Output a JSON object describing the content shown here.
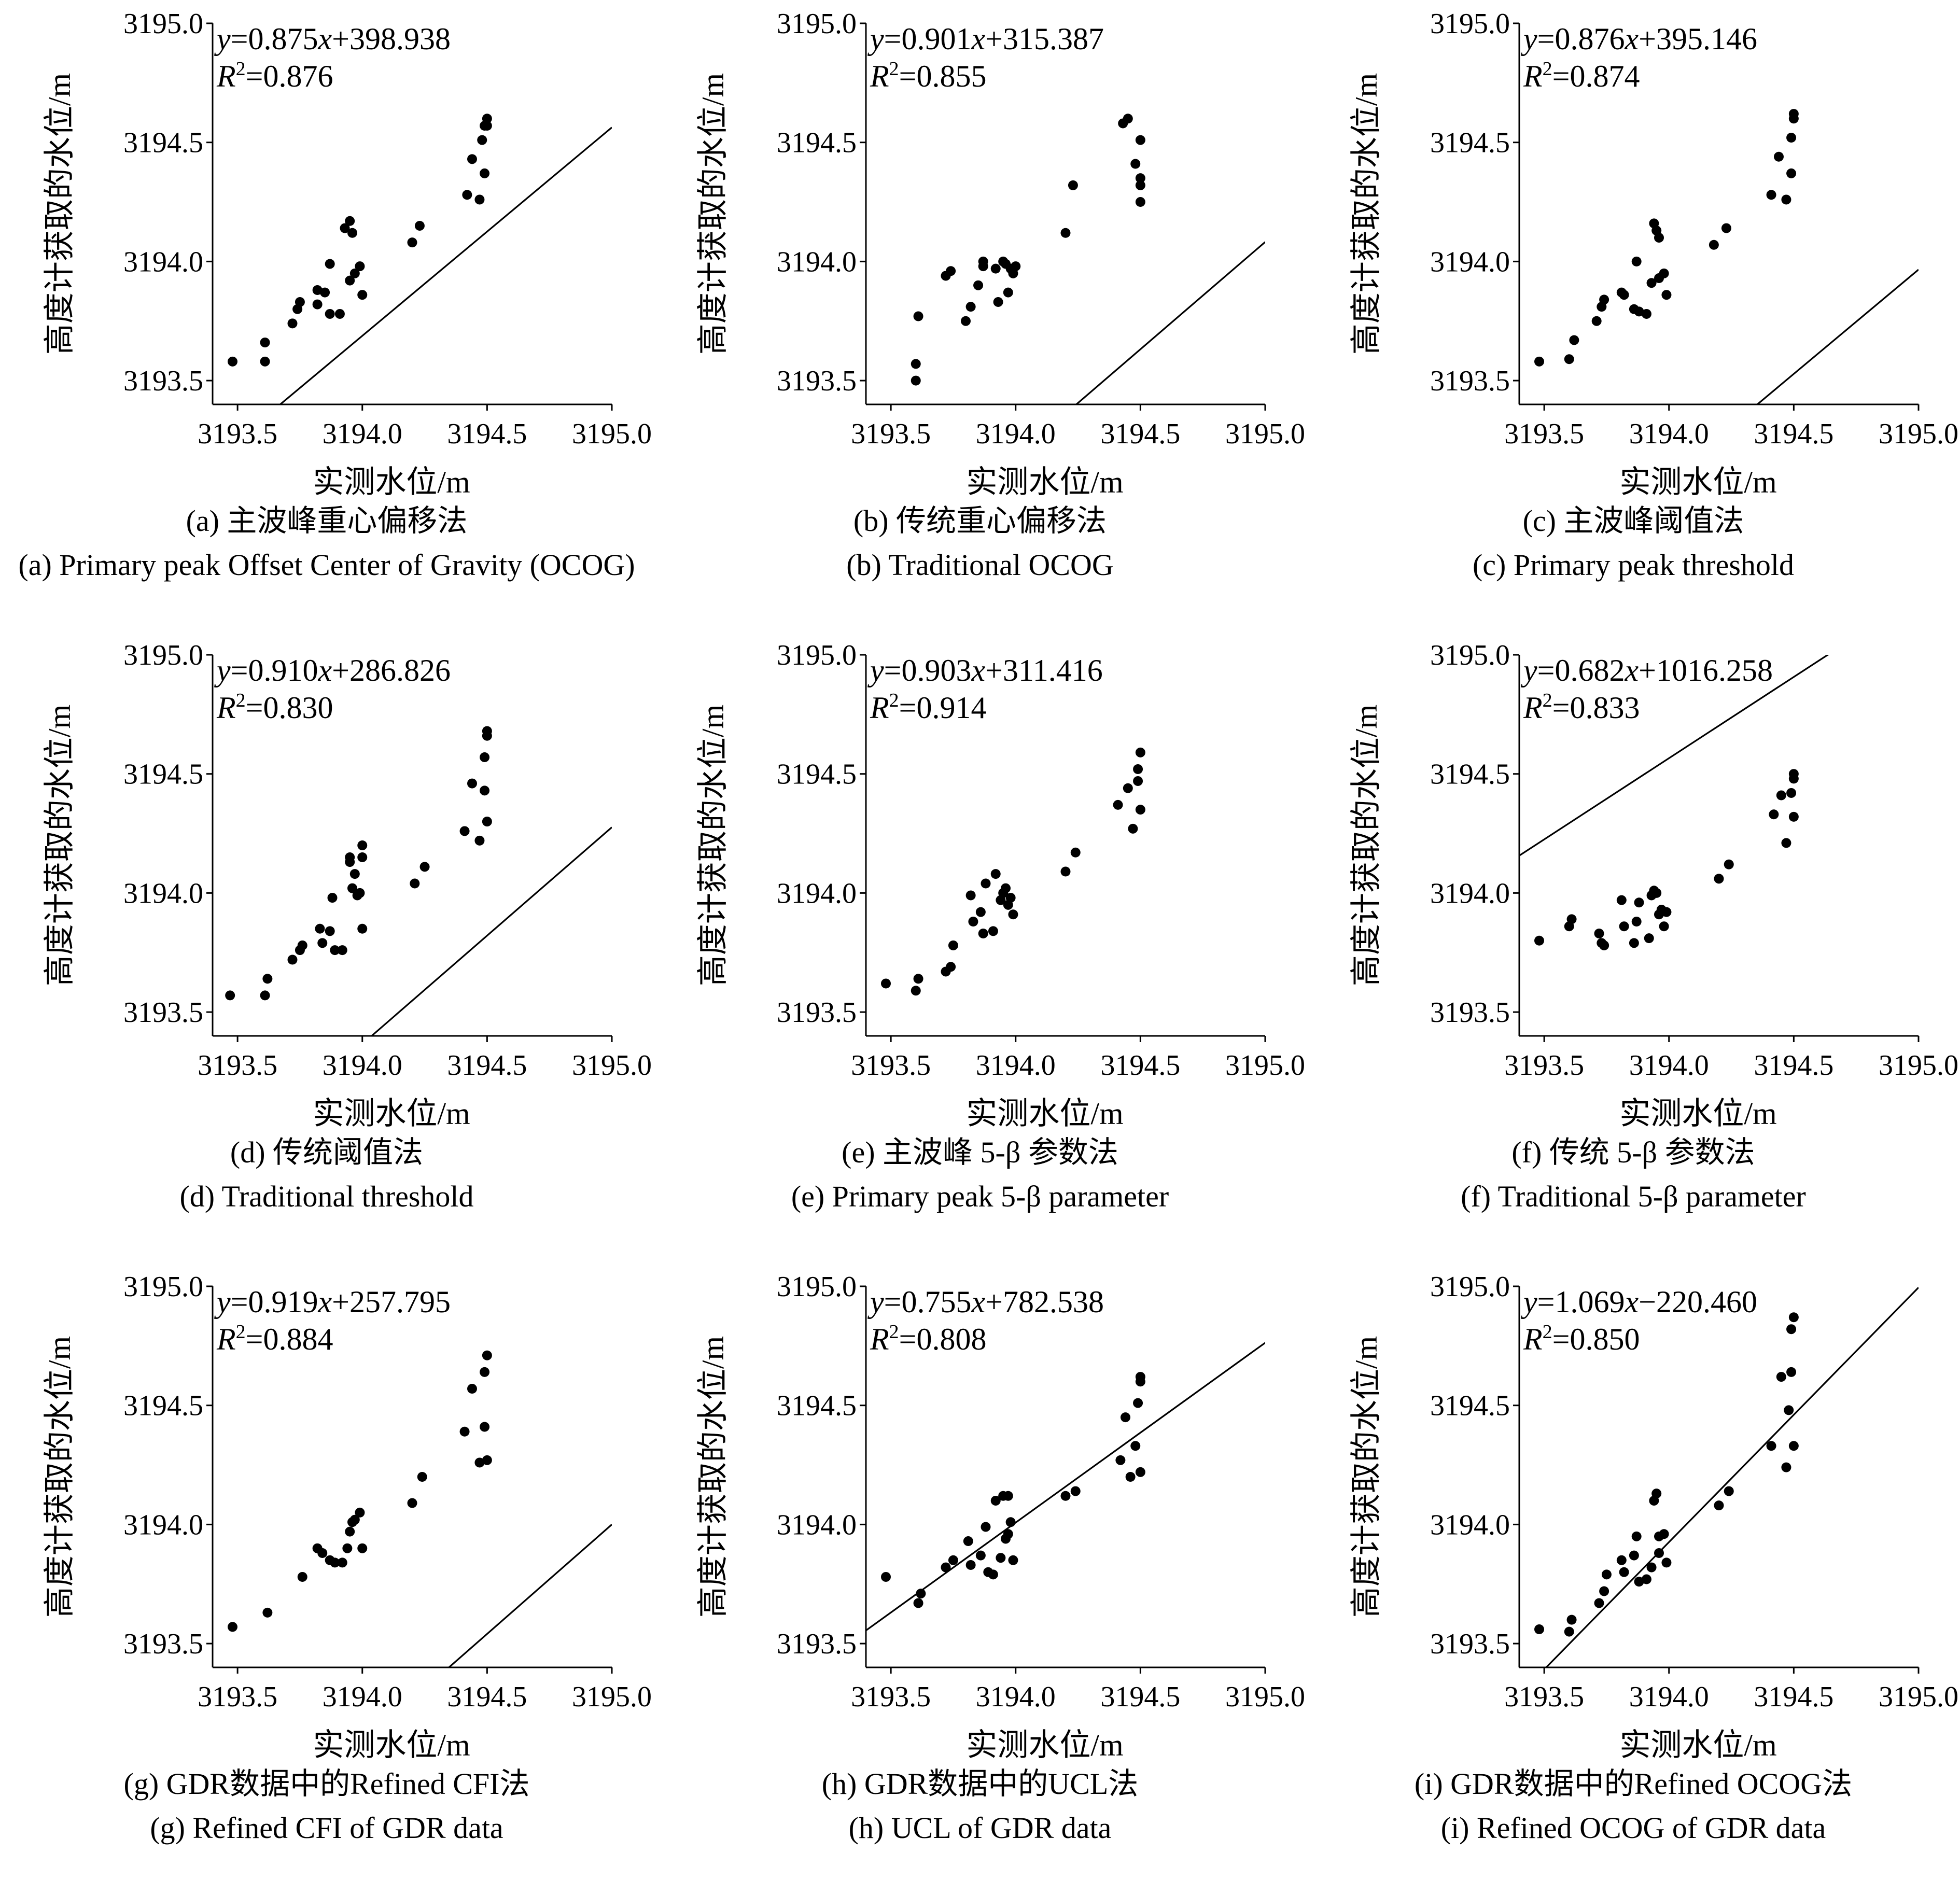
{
  "figure": {
    "panels": [
      {
        "id": "a",
        "cap_zh": "(a) 主波峰重心偏移法",
        "cap_en": "(a) Primary peak Offset Center of Gravity (OCOG)"
      },
      {
        "id": "b",
        "cap_zh": "(b) 传统重心偏移法",
        "cap_en": "(b) Traditional OCOG"
      },
      {
        "id": "c",
        "cap_zh": "(c) 主波峰阈值法",
        "cap_en": "(c) Primary peak threshold"
      },
      {
        "id": "d",
        "cap_zh": "(d) 传统阈值法",
        "cap_en": "(d) Traditional threshold"
      },
      {
        "id": "e",
        "cap_zh": "(e) 主波峰 5-β 参数法",
        "cap_en": "(e) Primary peak 5-β parameter"
      },
      {
        "id": "f",
        "cap_zh": "(f) 传统 5-β 参数法",
        "cap_en": "(f) Traditional 5-β parameter"
      },
      {
        "id": "g",
        "cap_zh": "(g) GDR数据中的Refined CFI法",
        "cap_en": "(g) Refined CFI of GDR data"
      },
      {
        "id": "h",
        "cap_zh": "(h) GDR数据中的UCL法",
        "cap_en": "(h) UCL of GDR data"
      },
      {
        "id": "i",
        "cap_zh": "(i) GDR数据中的Refined OCOG法",
        "cap_en": "(i) Refined OCOG of GDR data"
      }
    ]
  },
  "chart_data": [
    {
      "type": "scatter",
      "title": "(a) 主波峰重心偏移法",
      "xlabel": "实测水位/m",
      "ylabel": "高度计获取的水位/m",
      "xlim": [
        3193.4,
        3195.0
      ],
      "ylim": [
        3193.4,
        3195.0
      ],
      "xticks": [
        "3193.5",
        "3194.0",
        "3194.5",
        "3195.0"
      ],
      "yticks": [
        "3193.5",
        "3194.0",
        "3194.5",
        "3195.0"
      ],
      "fit": {
        "slope": 0.875,
        "intercept": 398.938,
        "eq_slope": "0.875",
        "eq_sign": "+",
        "eq_intercept": "398.938",
        "r2": "0.876"
      },
      "x": [
        3193.48,
        3193.61,
        3193.61,
        3193.72,
        3193.74,
        3193.75,
        3193.82,
        3193.82,
        3193.85,
        3193.87,
        3193.87,
        3193.91,
        3193.93,
        3193.95,
        3193.95,
        3193.96,
        3193.97,
        3193.99,
        3194.0,
        3194.2,
        3194.23,
        3194.42,
        3194.44,
        3194.47,
        3194.48,
        3194.49,
        3194.49,
        3194.5,
        3194.5
      ],
      "y": [
        3193.58,
        3193.58,
        3193.66,
        3193.74,
        3193.8,
        3193.83,
        3193.82,
        3193.88,
        3193.87,
        3193.78,
        3193.99,
        3193.78,
        3194.14,
        3194.17,
        3193.92,
        3194.12,
        3193.95,
        3193.98,
        3193.86,
        3194.08,
        3194.15,
        3194.28,
        3194.43,
        3194.26,
        3194.51,
        3194.37,
        3194.57,
        3194.6,
        3194.57
      ]
    },
    {
      "type": "scatter",
      "title": "(b) 传统重心偏移法",
      "xlabel": "实测水位/m",
      "ylabel": "高度计获取的水位/m",
      "xlim": [
        3193.4,
        3195.0
      ],
      "ylim": [
        3193.4,
        3195.0
      ],
      "xticks": [
        "3193.5",
        "3194.0",
        "3194.5",
        "3195.0"
      ],
      "yticks": [
        "3193.5",
        "3194.0",
        "3194.5",
        "3195.0"
      ],
      "fit": {
        "slope": 0.901,
        "intercept": 315.387,
        "eq_slope": "0.901",
        "eq_sign": "+",
        "eq_intercept": "315.387",
        "r2": "0.855"
      },
      "x": [
        3193.6,
        3193.6,
        3193.61,
        3193.72,
        3193.74,
        3193.8,
        3193.82,
        3193.85,
        3193.87,
        3193.87,
        3193.92,
        3193.93,
        3193.95,
        3193.96,
        3193.97,
        3193.98,
        3193.99,
        3194.0,
        3194.2,
        3194.23,
        3194.43,
        3194.45,
        3194.48,
        3194.5,
        3194.5,
        3194.5,
        3194.5
      ],
      "y": [
        3193.5,
        3193.57,
        3193.77,
        3193.94,
        3193.96,
        3193.75,
        3193.81,
        3193.9,
        3194.0,
        3193.98,
        3193.97,
        3193.83,
        3194.0,
        3193.99,
        3193.87,
        3193.97,
        3193.95,
        3193.98,
        3194.12,
        3194.32,
        3194.58,
        3194.6,
        3194.41,
        3194.25,
        3194.32,
        3194.35,
        3194.51
      ]
    },
    {
      "type": "scatter",
      "title": "(c) 主波峰阈值法",
      "xlabel": "实测水位/m",
      "ylabel": "高度计获取的水位/m",
      "xlim": [
        3193.4,
        3195.0
      ],
      "ylim": [
        3193.4,
        3195.0
      ],
      "xticks": [
        "3193.5",
        "3194.0",
        "3194.5",
        "3195.0"
      ],
      "yticks": [
        "3193.5",
        "3194.0",
        "3194.5",
        "3195.0"
      ],
      "fit": {
        "slope": 0.876,
        "intercept": 395.146,
        "eq_slope": "0.876",
        "eq_sign": "+",
        "eq_intercept": "395.146",
        "r2": "0.874"
      },
      "x": [
        3193.48,
        3193.6,
        3193.62,
        3193.71,
        3193.73,
        3193.74,
        3193.81,
        3193.82,
        3193.86,
        3193.87,
        3193.88,
        3193.91,
        3193.93,
        3193.94,
        3193.95,
        3193.96,
        3193.96,
        3193.98,
        3193.99,
        3194.18,
        3194.23,
        3194.41,
        3194.44,
        3194.47,
        3194.49,
        3194.49,
        3194.5,
        3194.5
      ],
      "y": [
        3193.58,
        3193.59,
        3193.67,
        3193.75,
        3193.81,
        3193.84,
        3193.87,
        3193.86,
        3193.8,
        3194.0,
        3193.79,
        3193.78,
        3193.91,
        3194.16,
        3194.13,
        3193.93,
        3194.1,
        3193.95,
        3193.86,
        3194.07,
        3194.14,
        3194.28,
        3194.44,
        3194.26,
        3194.52,
        3194.37,
        3194.6,
        3194.62
      ]
    },
    {
      "type": "scatter",
      "title": "(d) 传统阈值法",
      "xlabel": "实测水位/m",
      "ylabel": "高度计获取的水位/m",
      "xlim": [
        3193.4,
        3195.0
      ],
      "ylim": [
        3193.4,
        3195.0
      ],
      "xticks": [
        "3193.5",
        "3194.0",
        "3194.5",
        "3195.0"
      ],
      "yticks": [
        "3193.5",
        "3194.0",
        "3194.5",
        "3195.0"
      ],
      "fit": {
        "slope": 0.91,
        "intercept": 286.826,
        "eq_slope": "0.910",
        "eq_sign": "+",
        "eq_intercept": "286.826",
        "r2": "0.830"
      },
      "x": [
        3193.47,
        3193.61,
        3193.62,
        3193.72,
        3193.75,
        3193.76,
        3193.83,
        3193.84,
        3193.87,
        3193.88,
        3193.89,
        3193.92,
        3193.95,
        3193.95,
        3193.96,
        3193.97,
        3193.98,
        3193.99,
        3194.0,
        3194.0,
        3194.0,
        3194.21,
        3194.25,
        3194.41,
        3194.44,
        3194.47,
        3194.49,
        3194.49,
        3194.5,
        3194.5,
        3194.5
      ],
      "y": [
        3193.57,
        3193.57,
        3193.64,
        3193.72,
        3193.76,
        3193.78,
        3193.85,
        3193.79,
        3193.84,
        3193.98,
        3193.76,
        3193.76,
        3194.13,
        3194.15,
        3194.02,
        3194.08,
        3193.99,
        3194.0,
        3193.85,
        3194.15,
        3194.2,
        3194.04,
        3194.11,
        3194.26,
        3194.46,
        3194.22,
        3194.43,
        3194.57,
        3194.3,
        3194.66,
        3194.68
      ]
    },
    {
      "type": "scatter",
      "title": "(e) 主波峰 5-β 参数法",
      "xlabel": "实测水位/m",
      "ylabel": "高度计获取的水位/m",
      "xlim": [
        3193.4,
        3195.0
      ],
      "ylim": [
        3193.4,
        3195.0
      ],
      "xticks": [
        "3193.5",
        "3194.0",
        "3194.5",
        "3195.0"
      ],
      "yticks": [
        "3193.5",
        "3194.0",
        "3194.5",
        "3195.0"
      ],
      "fit": {
        "slope": 0.903,
        "intercept": 311.416,
        "eq_slope": "0.903",
        "eq_sign": "+",
        "eq_intercept": "311.416",
        "r2": "0.914"
      },
      "x": [
        3193.48,
        3193.6,
        3193.61,
        3193.72,
        3193.74,
        3193.75,
        3193.82,
        3193.83,
        3193.86,
        3193.87,
        3193.88,
        3193.91,
        3193.92,
        3193.94,
        3193.95,
        3193.96,
        3193.97,
        3193.98,
        3193.99,
        3194.2,
        3194.24,
        3194.41,
        3194.45,
        3194.47,
        3194.49,
        3194.49,
        3194.5,
        3194.5
      ],
      "y": [
        3193.62,
        3193.59,
        3193.64,
        3193.67,
        3193.69,
        3193.78,
        3193.99,
        3193.88,
        3193.92,
        3193.83,
        3194.04,
        3193.84,
        3194.08,
        3193.97,
        3194.0,
        3194.02,
        3193.95,
        3193.98,
        3193.91,
        3194.09,
        3194.17,
        3194.37,
        3194.44,
        3194.27,
        3194.47,
        3194.52,
        3194.35,
        3194.59
      ]
    },
    {
      "type": "scatter",
      "title": "(f) 传统 5-β 参数法",
      "xlabel": "实测水位/m",
      "ylabel": "高度计获取的水位/m",
      "xlim": [
        3193.4,
        3195.0
      ],
      "ylim": [
        3193.4,
        3195.0
      ],
      "xticks": [
        "3193.5",
        "3194.0",
        "3194.5",
        "3195.0"
      ],
      "yticks": [
        "3193.5",
        "3194.0",
        "3194.5",
        "3195.0"
      ],
      "fit": {
        "slope": 0.682,
        "intercept": 1016.258,
        "eq_slope": "0.682",
        "eq_sign": "+",
        "eq_intercept": "1016.258",
        "r2": "0.833"
      },
      "x": [
        3193.48,
        3193.6,
        3193.61,
        3193.72,
        3193.73,
        3193.74,
        3193.81,
        3193.82,
        3193.86,
        3193.87,
        3193.88,
        3193.92,
        3193.93,
        3193.94,
        3193.95,
        3193.96,
        3193.97,
        3193.98,
        3193.99,
        3194.2,
        3194.24,
        3194.42,
        3194.45,
        3194.47,
        3194.49,
        3194.5,
        3194.5,
        3194.5
      ],
      "y": [
        3193.8,
        3193.86,
        3193.89,
        3193.83,
        3193.79,
        3193.78,
        3193.97,
        3193.86,
        3193.79,
        3193.88,
        3193.96,
        3193.81,
        3193.99,
        3194.01,
        3194.0,
        3193.91,
        3193.93,
        3193.86,
        3193.92,
        3194.06,
        3194.12,
        3194.33,
        3194.41,
        3194.21,
        3194.42,
        3194.5,
        3194.48,
        3194.32
      ]
    },
    {
      "type": "scatter",
      "title": "(g) GDR数据中的Refined CFI法",
      "xlabel": "实测水位/m",
      "ylabel": "高度计获取的水位/m",
      "xlim": [
        3193.4,
        3195.0
      ],
      "ylim": [
        3193.4,
        3195.0
      ],
      "xticks": [
        "3193.5",
        "3194.0",
        "3194.5",
        "3195.0"
      ],
      "yticks": [
        "3193.5",
        "3194.0",
        "3194.5",
        "3195.0"
      ],
      "fit": {
        "slope": 0.919,
        "intercept": 257.795,
        "eq_slope": "0.919",
        "eq_sign": "+",
        "eq_intercept": "257.795",
        "r2": "0.884"
      },
      "x": [
        3193.48,
        3193.62,
        3193.76,
        3193.82,
        3193.84,
        3193.87,
        3193.89,
        3193.92,
        3193.94,
        3193.95,
        3193.96,
        3193.97,
        3193.99,
        3194.0,
        3194.2,
        3194.24,
        3194.41,
        3194.44,
        3194.47,
        3194.49,
        3194.49,
        3194.5,
        3194.5
      ],
      "y": [
        3193.57,
        3193.63,
        3193.78,
        3193.9,
        3193.88,
        3193.85,
        3193.84,
        3193.84,
        3193.9,
        3193.97,
        3194.01,
        3194.02,
        3194.05,
        3193.9,
        3194.09,
        3194.2,
        3194.39,
        3194.57,
        3194.26,
        3194.41,
        3194.64,
        3194.71,
        3194.27
      ]
    },
    {
      "type": "scatter",
      "title": "(h) GDR数据中的UCL法",
      "xlabel": "实测水位/m",
      "ylabel": "高度计获取的水位/m",
      "xlim": [
        3193.4,
        3195.0
      ],
      "ylim": [
        3193.4,
        3195.0
      ],
      "xticks": [
        "3193.5",
        "3194.0",
        "3194.5",
        "3195.0"
      ],
      "yticks": [
        "3193.5",
        "3194.0",
        "3194.5",
        "3195.0"
      ],
      "fit": {
        "slope": 0.755,
        "intercept": 782.538,
        "eq_slope": "0.755",
        "eq_sign": "+",
        "eq_intercept": "782.538",
        "r2": "0.808"
      },
      "x": [
        3193.48,
        3193.61,
        3193.62,
        3193.72,
        3193.75,
        3193.81,
        3193.82,
        3193.86,
        3193.88,
        3193.89,
        3193.91,
        3193.92,
        3193.94,
        3193.95,
        3193.96,
        3193.97,
        3193.97,
        3193.98,
        3193.99,
        3194.2,
        3194.24,
        3194.42,
        3194.44,
        3194.46,
        3194.48,
        3194.49,
        3194.5,
        3194.5,
        3194.5
      ],
      "y": [
        3193.78,
        3193.67,
        3193.71,
        3193.82,
        3193.85,
        3193.93,
        3193.83,
        3193.87,
        3193.99,
        3193.8,
        3193.79,
        3194.1,
        3193.86,
        3194.12,
        3193.94,
        3194.12,
        3193.96,
        3194.01,
        3193.85,
        3194.12,
        3194.14,
        3194.27,
        3194.45,
        3194.2,
        3194.33,
        3194.51,
        3194.22,
        3194.6,
        3194.62
      ]
    },
    {
      "type": "scatter",
      "title": "(i) GDR数据中的Refined OCOG法",
      "xlabel": "实测水位/m",
      "ylabel": "高度计获取的水位/m",
      "xlim": [
        3193.4,
        3195.0
      ],
      "ylim": [
        3193.4,
        3195.0
      ],
      "xticks": [
        "3193.5",
        "3194.0",
        "3194.5",
        "3195.0"
      ],
      "yticks": [
        "3193.5",
        "3194.0",
        "3194.5",
        "3195.0"
      ],
      "fit": {
        "slope": 1.069,
        "intercept": -220.46,
        "eq_slope": "1.069",
        "eq_sign": "−",
        "eq_intercept": "220.460",
        "r2": "0.850"
      },
      "x": [
        3193.48,
        3193.6,
        3193.61,
        3193.72,
        3193.74,
        3193.75,
        3193.81,
        3193.82,
        3193.86,
        3193.87,
        3193.88,
        3193.91,
        3193.93,
        3193.94,
        3193.95,
        3193.96,
        3193.96,
        3193.98,
        3193.99,
        3194.2,
        3194.24,
        3194.41,
        3194.45,
        3194.47,
        3194.48,
        3194.49,
        3194.49,
        3194.5,
        3194.5
      ],
      "y": [
        3193.56,
        3193.55,
        3193.6,
        3193.67,
        3193.72,
        3193.79,
        3193.85,
        3193.8,
        3193.87,
        3193.95,
        3193.76,
        3193.77,
        3193.82,
        3194.1,
        3194.13,
        3193.88,
        3193.95,
        3193.96,
        3193.84,
        3194.08,
        3194.14,
        3194.33,
        3194.62,
        3194.24,
        3194.48,
        3194.64,
        3194.82,
        3194.87,
        3194.33
      ]
    }
  ]
}
